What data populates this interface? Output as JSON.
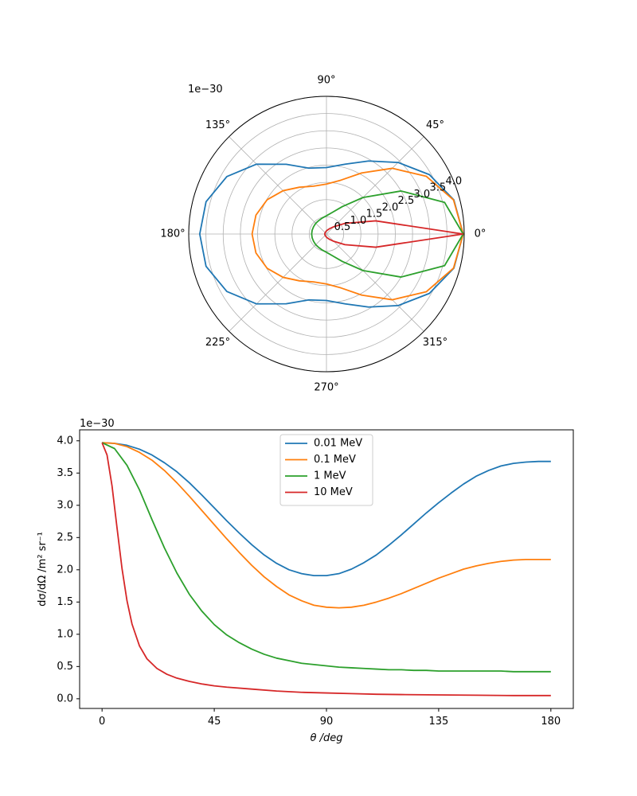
{
  "chart_data": [
    {
      "type": "line",
      "projection": "polar",
      "title": "",
      "offset_text": "1e−30",
      "r_unit_exponent": -30,
      "rlim": [
        0,
        4.0
      ],
      "theta_ticks": [
        0,
        45,
        90,
        135,
        180,
        225,
        270,
        315
      ],
      "theta_tick_labels": [
        "0°",
        "45°",
        "90°",
        "135°",
        "180°",
        "225°",
        "270°",
        "315°"
      ],
      "r_ticks": [
        0.5,
        1.0,
        1.5,
        2.0,
        2.5,
        3.0,
        3.5,
        4.0
      ],
      "r_tick_labels": [
        "0.5",
        "1.0",
        "1.5",
        "2.0",
        "2.5",
        "3.0",
        "3.5",
        "4.0"
      ],
      "grid": true,
      "theta_deg": [
        0,
        15,
        30,
        45,
        60,
        75,
        90,
        105,
        120,
        135,
        150,
        165,
        180,
        195,
        210,
        225,
        240,
        255,
        270,
        285,
        300,
        315,
        330,
        345,
        360
      ],
      "series": [
        {
          "name": "0.01 MeV",
          "color": "#1f77b4",
          "r": [
            3.97,
            3.83,
            3.45,
            2.94,
            2.45,
            2.1,
            1.93,
            1.98,
            2.34,
            2.87,
            3.34,
            3.62,
            3.68,
            3.62,
            3.34,
            2.87,
            2.34,
            1.98,
            1.93,
            2.1,
            2.45,
            2.94,
            3.45,
            3.83,
            3.97
          ]
        },
        {
          "name": "0.1 MeV",
          "color": "#ff7f0e",
          "r": [
            3.97,
            3.82,
            3.35,
            2.7,
            2.05,
            1.62,
            1.45,
            1.44,
            1.57,
            1.78,
            1.99,
            2.12,
            2.16,
            2.12,
            1.99,
            1.78,
            1.57,
            1.44,
            1.45,
            1.62,
            2.05,
            2.7,
            3.35,
            3.82,
            3.97
          ]
        },
        {
          "name": "1 MeV",
          "color": "#2ca02c",
          "r": [
            3.97,
            3.55,
            2.5,
            1.5,
            0.92,
            0.65,
            0.53,
            0.48,
            0.45,
            0.44,
            0.43,
            0.43,
            0.43,
            0.43,
            0.43,
            0.44,
            0.45,
            0.48,
            0.53,
            0.65,
            0.92,
            1.5,
            2.5,
            3.55,
            3.97
          ]
        },
        {
          "name": "10 MeV",
          "color": "#d62728",
          "r": [
            3.97,
            1.48,
            0.62,
            0.3,
            0.18,
            0.12,
            0.09,
            0.07,
            0.06,
            0.055,
            0.05,
            0.05,
            0.05,
            0.05,
            0.05,
            0.055,
            0.06,
            0.07,
            0.09,
            0.12,
            0.18,
            0.3,
            0.62,
            1.48,
            3.97
          ]
        }
      ]
    },
    {
      "type": "line",
      "title": "",
      "xlabel": "θ /deg",
      "ylabel": "dσ/dΩ /m² sr⁻¹",
      "offset_text": "1e−30",
      "y_unit_exponent": -30,
      "xlim": [
        -9,
        189
      ],
      "ylim": [
        -0.15,
        4.17
      ],
      "x_ticks": [
        0,
        45,
        90,
        135,
        180
      ],
      "x_tick_labels": [
        "0",
        "45",
        "90",
        "135",
        "180"
      ],
      "y_ticks": [
        0.0,
        0.5,
        1.0,
        1.5,
        2.0,
        2.5,
        3.0,
        3.5,
        4.0
      ],
      "y_tick_labels": [
        "0.0",
        "0.5",
        "1.0",
        "1.5",
        "2.0",
        "2.5",
        "3.0",
        "3.5",
        "4.0"
      ],
      "grid": false,
      "legend_position": "upper center",
      "series": [
        {
          "name": "0.01 MeV",
          "color": "#1f77b4",
          "x": [
            0,
            5,
            10,
            15,
            20,
            25,
            30,
            35,
            40,
            45,
            50,
            55,
            60,
            65,
            70,
            75,
            80,
            85,
            90,
            95,
            100,
            105,
            110,
            115,
            120,
            125,
            130,
            135,
            140,
            145,
            150,
            155,
            160,
            165,
            170,
            175,
            180
          ],
          "y": [
            3.97,
            3.96,
            3.93,
            3.87,
            3.78,
            3.66,
            3.52,
            3.35,
            3.16,
            2.96,
            2.76,
            2.57,
            2.39,
            2.23,
            2.1,
            2.0,
            1.94,
            1.91,
            1.91,
            1.94,
            2.01,
            2.11,
            2.23,
            2.38,
            2.54,
            2.71,
            2.88,
            3.04,
            3.19,
            3.33,
            3.45,
            3.54,
            3.61,
            3.65,
            3.67,
            3.68,
            3.68
          ]
        },
        {
          "name": "0.1 MeV",
          "color": "#ff7f0e",
          "x": [
            0,
            5,
            10,
            15,
            20,
            25,
            30,
            35,
            40,
            45,
            50,
            55,
            60,
            65,
            70,
            75,
            80,
            85,
            90,
            95,
            100,
            105,
            110,
            115,
            120,
            125,
            130,
            135,
            140,
            145,
            150,
            155,
            160,
            165,
            170,
            175,
            180
          ],
          "y": [
            3.97,
            3.96,
            3.91,
            3.82,
            3.7,
            3.54,
            3.35,
            3.14,
            2.92,
            2.7,
            2.48,
            2.27,
            2.07,
            1.89,
            1.74,
            1.61,
            1.52,
            1.45,
            1.42,
            1.41,
            1.42,
            1.45,
            1.5,
            1.56,
            1.63,
            1.71,
            1.79,
            1.87,
            1.94,
            2.01,
            2.06,
            2.1,
            2.13,
            2.15,
            2.16,
            2.16,
            2.16
          ]
        },
        {
          "name": "1 MeV",
          "color": "#2ca02c",
          "x": [
            0,
            5,
            10,
            15,
            20,
            25,
            30,
            35,
            40,
            45,
            50,
            55,
            60,
            65,
            70,
            75,
            80,
            85,
            90,
            95,
            100,
            105,
            110,
            115,
            120,
            125,
            130,
            135,
            140,
            145,
            150,
            155,
            160,
            165,
            170,
            175,
            180
          ],
          "y": [
            3.97,
            3.88,
            3.62,
            3.24,
            2.78,
            2.34,
            1.95,
            1.62,
            1.36,
            1.15,
            0.99,
            0.87,
            0.77,
            0.69,
            0.63,
            0.59,
            0.55,
            0.53,
            0.51,
            0.49,
            0.48,
            0.47,
            0.46,
            0.45,
            0.45,
            0.44,
            0.44,
            0.43,
            0.43,
            0.43,
            0.43,
            0.43,
            0.43,
            0.42,
            0.42,
            0.42,
            0.42
          ]
        },
        {
          "name": "10 MeV",
          "color": "#d62728",
          "x": [
            0,
            2,
            4,
            6,
            8,
            10,
            12,
            15,
            18,
            22,
            26,
            30,
            35,
            40,
            45,
            50,
            60,
            70,
            80,
            90,
            100,
            110,
            120,
            135,
            150,
            165,
            180
          ],
          "y": [
            3.97,
            3.78,
            3.3,
            2.65,
            2.02,
            1.52,
            1.16,
            0.82,
            0.62,
            0.47,
            0.38,
            0.32,
            0.27,
            0.23,
            0.2,
            0.18,
            0.15,
            0.12,
            0.1,
            0.09,
            0.08,
            0.07,
            0.065,
            0.06,
            0.055,
            0.05,
            0.05
          ]
        }
      ]
    }
  ]
}
